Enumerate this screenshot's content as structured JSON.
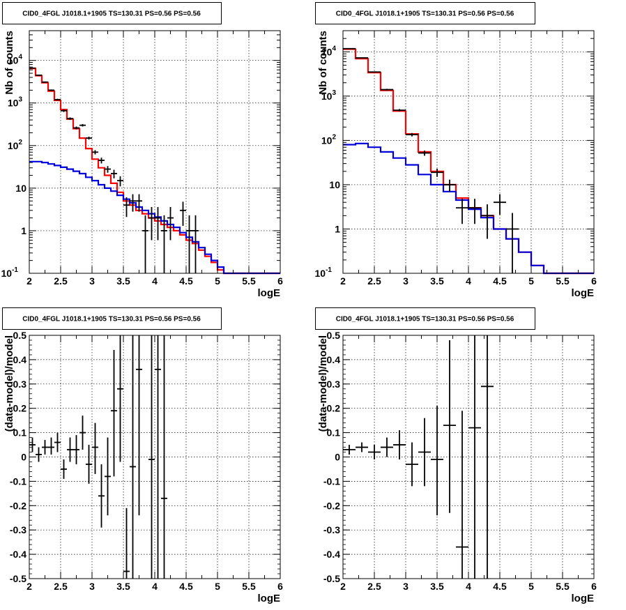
{
  "chart_data": [
    {
      "type": "line",
      "title": "CID0_4FGL J1018.1+1905 TS=130.31 PS=0.56 PS=0.56",
      "xlabel": "logE",
      "ylabel": "Nb of counts",
      "xlim": [
        2,
        6
      ],
      "ylim": [
        0.1,
        50000
      ],
      "yscale": "log",
      "grid": true,
      "xticks": [
        "2",
        "2.5",
        "3",
        "3.5",
        "4",
        "4.5",
        "5",
        "5.5",
        "6"
      ],
      "yticks": [
        {
          "value": 0.1,
          "label": "10",
          "sup": "-1"
        },
        {
          "value": 1,
          "label": "1",
          "sup": ""
        },
        {
          "value": 10,
          "label": "10",
          "sup": ""
        },
        {
          "value": 100,
          "label": "10",
          "sup": "2"
        },
        {
          "value": 1000,
          "label": "10",
          "sup": "3"
        },
        {
          "value": 10000,
          "label": "10",
          "sup": "4"
        }
      ],
      "bin_edges": [
        2.0,
        2.1,
        2.2,
        2.3,
        2.4,
        2.5,
        2.6,
        2.7,
        2.8,
        2.9,
        3.0,
        3.1,
        3.2,
        3.3,
        3.4,
        3.5,
        3.6,
        3.7,
        3.8,
        3.9,
        4.0,
        4.1,
        4.2,
        4.3,
        4.4,
        4.5,
        4.6,
        4.7,
        4.8,
        4.9,
        5.0,
        5.1,
        5.2,
        5.3,
        5.4,
        5.5,
        5.6,
        5.7,
        5.8,
        5.9,
        6.0
      ],
      "series": [
        {
          "name": "",
          "color": "#ff0000",
          "kind": "step",
          "values": [
            6500,
            4400,
            3000,
            1900,
            1150,
            700,
            420,
            250,
            150,
            85,
            48,
            30,
            20,
            13,
            8,
            5,
            4,
            3,
            2.5,
            2,
            1.7,
            1.4,
            1.2,
            1.0,
            0.8,
            0.6,
            0.5,
            0.35,
            0.25,
            0.18,
            0.12,
            0.1,
            0.1,
            0.1,
            0.1,
            0.1,
            0.1,
            0.1,
            0.1,
            0.1
          ]
        },
        {
          "name": "",
          "color": "#0000dd",
          "kind": "step",
          "values": [
            42,
            42,
            40,
            37,
            34,
            31,
            28,
            25,
            22,
            18,
            15,
            12,
            10,
            8.5,
            6.8,
            5.5,
            4.5,
            3.6,
            3.0,
            2.5,
            2.1,
            1.7,
            1.4,
            1.2,
            0.9,
            0.7,
            0.55,
            0.4,
            0.28,
            0.2,
            0.14,
            0.1,
            0.1,
            0.1,
            0.1,
            0.1,
            0.1,
            0.1,
            0.1,
            0.1
          ]
        },
        {
          "name": "",
          "color": "#000000",
          "kind": "points",
          "points": [
            {
              "x": 2.05,
              "y": 6600,
              "lo": 6450,
              "hi": 6750
            },
            {
              "x": 2.15,
              "y": 4500,
              "lo": 4380,
              "hi": 4620
            },
            {
              "x": 2.25,
              "y": 3100,
              "lo": 3000,
              "hi": 3200
            },
            {
              "x": 2.35,
              "y": 2000,
              "lo": 1920,
              "hi": 2080
            },
            {
              "x": 2.45,
              "y": 1200,
              "lo": 1140,
              "hi": 1260
            },
            {
              "x": 2.55,
              "y": 660,
              "lo": 615,
              "hi": 705
            },
            {
              "x": 2.65,
              "y": 430,
              "lo": 400,
              "hi": 460
            },
            {
              "x": 2.75,
              "y": 260,
              "lo": 240,
              "hi": 280
            },
            {
              "x": 2.85,
              "y": 300,
              "lo": 280,
              "hi": 320
            },
            {
              "x": 2.95,
              "y": 150,
              "lo": 138,
              "hi": 162
            },
            {
              "x": 3.05,
              "y": 70,
              "lo": 62,
              "hi": 78
            },
            {
              "x": 3.15,
              "y": 45,
              "lo": 38,
              "hi": 52
            },
            {
              "x": 3.25,
              "y": 28,
              "lo": 23,
              "hi": 33
            },
            {
              "x": 3.35,
              "y": 22,
              "lo": 17,
              "hi": 27
            },
            {
              "x": 3.45,
              "y": 15,
              "lo": 11,
              "hi": 19
            },
            {
              "x": 3.55,
              "y": 4,
              "lo": 2.1,
              "hi": 6.1
            },
            {
              "x": 3.65,
              "y": 5,
              "lo": 2.8,
              "hi": 7.2
            },
            {
              "x": 3.75,
              "y": 5,
              "lo": 2.8,
              "hi": 7.2
            },
            {
              "x": 3.85,
              "y": 1,
              "lo": 0.1,
              "hi": 2.3
            },
            {
              "x": 3.95,
              "y": 2,
              "lo": 0.6,
              "hi": 3.6
            },
            {
              "x": 4.05,
              "y": 2,
              "lo": 0.6,
              "hi": 3.6
            },
            {
              "x": 4.15,
              "y": 1,
              "lo": 0.1,
              "hi": 2.3
            },
            {
              "x": 4.25,
              "y": 2,
              "lo": 0.6,
              "hi": 3.6
            },
            {
              "x": 4.45,
              "y": 3,
              "lo": 1.3,
              "hi": 4.8
            },
            {
              "x": 4.55,
              "y": 1,
              "lo": 0.1,
              "hi": 2.3
            },
            {
              "x": 4.65,
              "y": 1,
              "lo": 0.1,
              "hi": 2.3
            }
          ]
        }
      ]
    },
    {
      "type": "line",
      "title": "CID0_4FGL J1018.1+1905 TS=130.31 PS=0.56 PS=0.56",
      "xlabel": "logE",
      "ylabel": "Nb of counts",
      "xlim": [
        2,
        6
      ],
      "ylim": [
        0.1,
        30000
      ],
      "yscale": "log",
      "grid": true,
      "xticks": [
        "2",
        "2.5",
        "3",
        "3.5",
        "4",
        "4.5",
        "5",
        "5.5",
        "6"
      ],
      "yticks": [
        {
          "value": 0.1,
          "label": "10",
          "sup": "-1"
        },
        {
          "value": 1,
          "label": "1",
          "sup": ""
        },
        {
          "value": 10,
          "label": "10",
          "sup": ""
        },
        {
          "value": 100,
          "label": "10",
          "sup": "2"
        },
        {
          "value": 1000,
          "label": "10",
          "sup": "3"
        },
        {
          "value": 10000,
          "label": "10",
          "sup": "4"
        }
      ],
      "bin_edges": [
        2.0,
        2.2,
        2.4,
        2.6,
        2.8,
        3.0,
        3.2,
        3.4,
        3.6,
        3.8,
        4.0,
        4.2,
        4.4,
        4.6,
        4.8,
        5.0,
        5.2,
        5.4,
        5.6,
        5.8,
        6.0
      ],
      "series": [
        {
          "name": "",
          "color": "#ff0000",
          "kind": "step",
          "values": [
            11500,
            7000,
            3400,
            1350,
            460,
            140,
            55,
            20,
            10,
            5,
            3,
            2,
            1,
            0.6,
            0.3,
            0.15,
            0.1,
            0.1,
            0.1,
            0.1
          ]
        },
        {
          "name": "",
          "color": "#0000dd",
          "kind": "step",
          "values": [
            80,
            85,
            70,
            55,
            40,
            28,
            17,
            10,
            7,
            4.5,
            2.8,
            1.8,
            1.0,
            0.6,
            0.3,
            0.15,
            0.1,
            0.1,
            0.1,
            0.1
          ]
        },
        {
          "name": "",
          "color": "#000000",
          "kind": "points",
          "points": [
            {
              "x": 2.1,
              "y": 11800,
              "lo": 11600,
              "hi": 12000
            },
            {
              "x": 2.3,
              "y": 7300,
              "lo": 7150,
              "hi": 7450
            },
            {
              "x": 2.5,
              "y": 3500,
              "lo": 3400,
              "hi": 3600
            },
            {
              "x": 2.7,
              "y": 1400,
              "lo": 1340,
              "hi": 1460
            },
            {
              "x": 2.9,
              "y": 480,
              "lo": 450,
              "hi": 510
            },
            {
              "x": 3.1,
              "y": 135,
              "lo": 123,
              "hi": 147
            },
            {
              "x": 3.3,
              "y": 52,
              "lo": 45,
              "hi": 59
            },
            {
              "x": 3.5,
              "y": 19,
              "lo": 15,
              "hi": 23
            },
            {
              "x": 3.7,
              "y": 10,
              "lo": 7,
              "hi": 13
            },
            {
              "x": 3.9,
              "y": 3,
              "lo": 1.3,
              "hi": 4.8
            },
            {
              "x": 4.1,
              "y": 3,
              "lo": 1.3,
              "hi": 4.8
            },
            {
              "x": 4.3,
              "y": 2,
              "lo": 0.6,
              "hi": 3.6
            },
            {
              "x": 4.5,
              "y": 4,
              "lo": 2.1,
              "hi": 6.1
            },
            {
              "x": 4.7,
              "y": 1,
              "lo": 0.1,
              "hi": 2.3
            }
          ]
        }
      ]
    },
    {
      "type": "scatter",
      "title": "CID0_4FGL J1018.1+1905 TS=130.31 PS=0.56 PS=0.56",
      "xlabel": "logE",
      "ylabel": "(data-model)/model",
      "xlim": [
        2,
        6
      ],
      "ylim": [
        -0.5,
        0.5
      ],
      "yscale": "linear",
      "grid": true,
      "xticks": [
        "2",
        "2.5",
        "3",
        "3.5",
        "4",
        "4.5",
        "5",
        "5.5",
        "6"
      ],
      "yticks": [
        {
          "value": -0.5,
          "label": "-0.5"
        },
        {
          "value": -0.4,
          "label": "-0.4"
        },
        {
          "value": -0.3,
          "label": "-0.3"
        },
        {
          "value": -0.2,
          "label": "-0.2"
        },
        {
          "value": -0.1,
          "label": "-0.1"
        },
        {
          "value": 0,
          "label": "0"
        },
        {
          "value": 0.1,
          "label": "0.1"
        },
        {
          "value": 0.2,
          "label": "0.2"
        },
        {
          "value": 0.3,
          "label": "0.3"
        },
        {
          "value": 0.4,
          "label": "0.4"
        },
        {
          "value": 0.5,
          "label": "0.5"
        }
      ],
      "series": [
        {
          "name": "",
          "color": "#000000",
          "kind": "points",
          "halfwidth": 0.05,
          "points": [
            {
              "x": 2.05,
              "y": 0.05,
              "lo": 0.02,
              "hi": 0.08
            },
            {
              "x": 2.15,
              "y": 0.01,
              "lo": -0.02,
              "hi": 0.04
            },
            {
              "x": 2.25,
              "y": 0.04,
              "lo": 0.01,
              "hi": 0.07
            },
            {
              "x": 2.35,
              "y": 0.04,
              "lo": 0.01,
              "hi": 0.08
            },
            {
              "x": 2.45,
              "y": 0.06,
              "lo": 0.02,
              "hi": 0.1
            },
            {
              "x": 2.55,
              "y": -0.05,
              "lo": -0.09,
              "hi": -0.01
            },
            {
              "x": 2.65,
              "y": 0.03,
              "lo": -0.02,
              "hi": 0.08
            },
            {
              "x": 2.75,
              "y": 0.03,
              "lo": -0.03,
              "hi": 0.09
            },
            {
              "x": 2.85,
              "y": 0.1,
              "lo": 0.03,
              "hi": 0.17
            },
            {
              "x": 2.95,
              "y": -0.03,
              "lo": -0.11,
              "hi": 0.05
            },
            {
              "x": 3.05,
              "y": 0.04,
              "lo": -0.07,
              "hi": 0.14
            },
            {
              "x": 3.15,
              "y": -0.16,
              "lo": -0.29,
              "hi": -0.03
            },
            {
              "x": 3.25,
              "y": -0.08,
              "lo": -0.24,
              "hi": 0.08
            },
            {
              "x": 3.35,
              "y": 0.19,
              "lo": -0.08,
              "hi": 0.44
            },
            {
              "x": 3.45,
              "y": 0.28,
              "lo": -0.02,
              "hi": 0.5
            },
            {
              "x": 3.55,
              "y": -0.47,
              "lo": -0.5,
              "hi": -0.21
            },
            {
              "x": 3.65,
              "y": -0.04,
              "lo": -0.5,
              "hi": 0.5
            },
            {
              "x": 3.75,
              "y": 0.36,
              "lo": -0.24,
              "hi": 0.5
            },
            {
              "x": 3.95,
              "y": -0.01,
              "lo": -0.5,
              "hi": 0.5
            },
            {
              "x": 4.05,
              "y": 0.36,
              "lo": -0.5,
              "hi": 0.5
            },
            {
              "x": 4.15,
              "y": -0.17,
              "lo": -0.5,
              "hi": 0.5
            }
          ]
        }
      ]
    },
    {
      "type": "scatter",
      "title": "CID0_4FGL J1018.1+1905 TS=130.31 PS=0.56 PS=0.56",
      "xlabel": "logE",
      "ylabel": "(data-model)/model",
      "xlim": [
        2,
        6
      ],
      "ylim": [
        -0.5,
        0.5
      ],
      "yscale": "linear",
      "grid": true,
      "xticks": [
        "2",
        "2.5",
        "3",
        "3.5",
        "4",
        "4.5",
        "5",
        "5.5",
        "6"
      ],
      "yticks": [
        {
          "value": -0.5,
          "label": "-0.5"
        },
        {
          "value": -0.4,
          "label": "-0.4"
        },
        {
          "value": -0.3,
          "label": "-0.3"
        },
        {
          "value": -0.2,
          "label": "-0.2"
        },
        {
          "value": -0.1,
          "label": "-0.1"
        },
        {
          "value": 0,
          "label": "0"
        },
        {
          "value": 0.1,
          "label": "0.1"
        },
        {
          "value": 0.2,
          "label": "0.2"
        },
        {
          "value": 0.3,
          "label": "0.3"
        },
        {
          "value": 0.4,
          "label": "0.4"
        },
        {
          "value": 0.5,
          "label": "0.5"
        }
      ],
      "series": [
        {
          "name": "",
          "color": "#000000",
          "kind": "points",
          "halfwidth": 0.1,
          "points": [
            {
              "x": 2.1,
              "y": 0.03,
              "lo": 0.01,
              "hi": 0.05
            },
            {
              "x": 2.3,
              "y": 0.04,
              "lo": 0.02,
              "hi": 0.06
            },
            {
              "x": 2.5,
              "y": 0.02,
              "lo": -0.01,
              "hi": 0.05
            },
            {
              "x": 2.7,
              "y": 0.04,
              "lo": 0.0,
              "hi": 0.08
            },
            {
              "x": 2.9,
              "y": 0.05,
              "lo": -0.01,
              "hi": 0.11
            },
            {
              "x": 3.1,
              "y": -0.03,
              "lo": -0.12,
              "hi": 0.06
            },
            {
              "x": 3.3,
              "y": 0.02,
              "lo": -0.12,
              "hi": 0.16
            },
            {
              "x": 3.5,
              "y": -0.01,
              "lo": -0.24,
              "hi": 0.21
            },
            {
              "x": 3.7,
              "y": 0.13,
              "lo": -0.23,
              "hi": 0.48
            },
            {
              "x": 3.9,
              "y": -0.37,
              "lo": -0.5,
              "hi": 0.19
            },
            {
              "x": 4.1,
              "y": 0.12,
              "lo": -0.5,
              "hi": 0.5
            },
            {
              "x": 4.3,
              "y": 0.29,
              "lo": -0.5,
              "hi": 0.5
            }
          ]
        }
      ]
    }
  ]
}
